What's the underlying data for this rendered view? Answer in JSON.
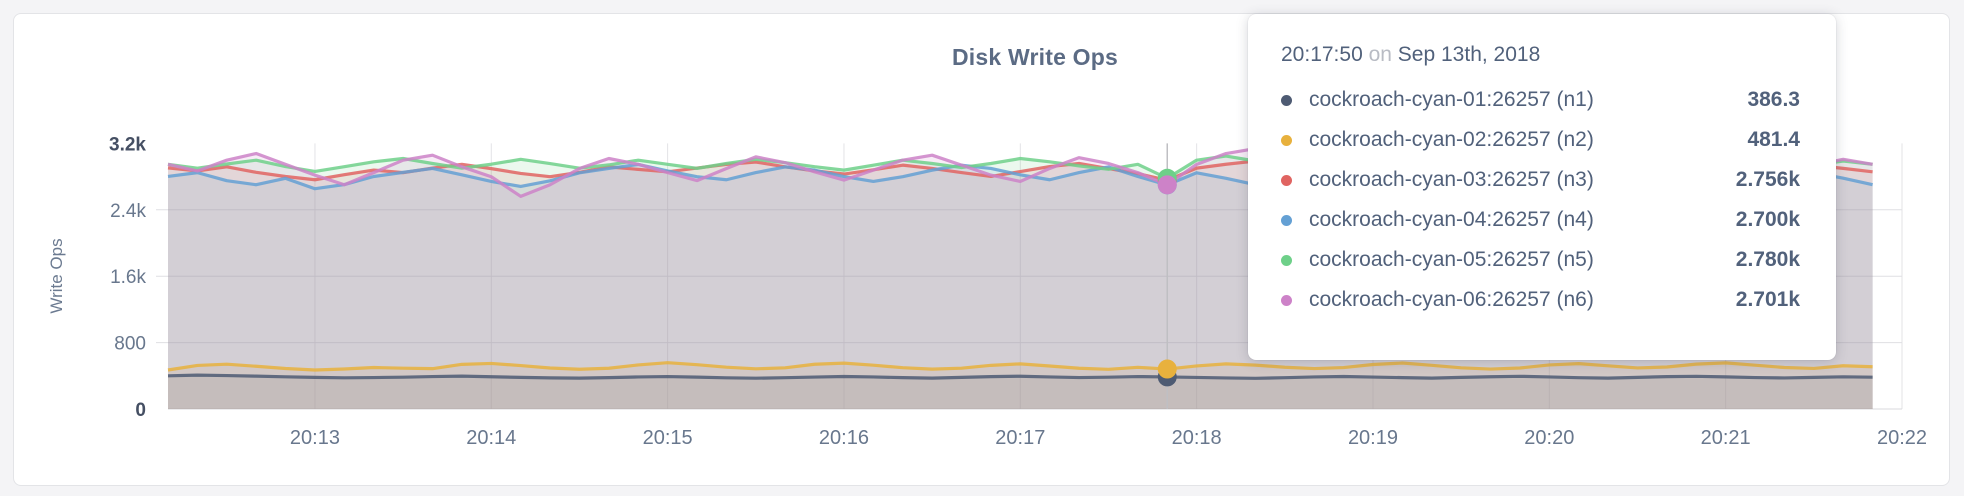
{
  "tooltip": {
    "title": {
      "time": "20:17:50",
      "conjunction": "on",
      "date": "Sep 13th, 2018"
    },
    "rows": [
      {
        "name": "cockroach-cyan-01:26257 (n1)",
        "value": "386.3",
        "color": "#4e5b73"
      },
      {
        "name": "cockroach-cyan-02:26257 (n2)",
        "value": "481.4",
        "color": "#e8b13d"
      },
      {
        "name": "cockroach-cyan-03:26257 (n3)",
        "value": "2.756k",
        "color": "#e06461"
      },
      {
        "name": "cockroach-cyan-04:26257 (n4)",
        "value": "2.700k",
        "color": "#64a0d4"
      },
      {
        "name": "cockroach-cyan-05:26257 (n5)",
        "value": "2.780k",
        "color": "#6ed089"
      },
      {
        "name": "cockroach-cyan-06:26257 (n6)",
        "value": "2.701k",
        "color": "#cd82c8"
      }
    ]
  },
  "chart_data": {
    "type": "area",
    "title": "Disk Write Ops",
    "ylabel": "Write Ops",
    "xlabel": "",
    "ylim": [
      0,
      3200
    ],
    "grid": true,
    "x_start": "20:12:10",
    "x_end": "20:22:00",
    "interval_seconds": 10,
    "domain_seconds": 590,
    "hover": {
      "index": 34,
      "time": "20:17:50",
      "date": "Sep 13th, 2018"
    },
    "y_ticks": [
      {
        "label": "0",
        "value": 0,
        "bold": true
      },
      {
        "label": "800",
        "value": 800,
        "bold": false
      },
      {
        "label": "1.6k",
        "value": 1600,
        "bold": false
      },
      {
        "label": "2.4k",
        "value": 2400,
        "bold": false
      },
      {
        "label": "3.2k",
        "value": 3200,
        "bold": true
      }
    ],
    "x_ticks": [
      {
        "label": "20:13",
        "t": 50
      },
      {
        "label": "20:14",
        "t": 110
      },
      {
        "label": "20:15",
        "t": 170
      },
      {
        "label": "20:16",
        "t": 230
      },
      {
        "label": "20:17",
        "t": 290
      },
      {
        "label": "20:18",
        "t": 350
      },
      {
        "label": "20:19",
        "t": 410
      },
      {
        "label": "20:20",
        "t": 470
      },
      {
        "label": "20:21",
        "t": 530
      },
      {
        "label": "20:22",
        "t": 590
      }
    ],
    "series": [
      {
        "name": "cockroach-cyan-01:26257 (n1)",
        "color": "#4e5b73",
        "hover_value": 386.3,
        "values": [
          400,
          408,
          403,
          396,
          388,
          381,
          376,
          379,
          383,
          391,
          396,
          389,
          381,
          375,
          372,
          378,
          386,
          391,
          384,
          376,
          371,
          377,
          385,
          392,
          386,
          378,
          372,
          381,
          390,
          395,
          386,
          379,
          383,
          391,
          386.3,
          380,
          374,
          370,
          377,
          386,
          392,
          385,
          378,
          372,
          381,
          389,
          394,
          386,
          377,
          372,
          381,
          390,
          394,
          387,
          379,
          374,
          381,
          388,
          383
        ]
      },
      {
        "name": "cockroach-cyan-02:26257 (n2)",
        "color": "#e8b13d",
        "hover_value": 481.4,
        "values": [
          470,
          525,
          540,
          515,
          488,
          470,
          482,
          500,
          492,
          486,
          538,
          549,
          523,
          494,
          479,
          491,
          531,
          558,
          534,
          504,
          484,
          496,
          539,
          553,
          528,
          498,
          480,
          492,
          526,
          544,
          518,
          491,
          478,
          502,
          481.4,
          519,
          544,
          529,
          503,
          487,
          499,
          536,
          554,
          526,
          496,
          481,
          494,
          531,
          547,
          520,
          495,
          506,
          541,
          556,
          528,
          500,
          489,
          521,
          509
        ]
      },
      {
        "name": "cockroach-cyan-03:26257 (n3)",
        "color": "#e06461",
        "hover_value": 2756,
        "values": [
          2905,
          2868,
          2918,
          2852,
          2801,
          2762,
          2823,
          2879,
          2848,
          2902,
          2948,
          2896,
          2838,
          2799,
          2851,
          2917,
          2887,
          2858,
          2903,
          2947,
          2976,
          2918,
          2869,
          2831,
          2882,
          2938,
          2898,
          2849,
          2802,
          2861,
          2921,
          2958,
          2897,
          2836,
          2756,
          2902,
          2949,
          2987,
          2928,
          2868,
          2821,
          2879,
          2936,
          2975,
          2917,
          2859,
          2901,
          2946,
          2899,
          2841,
          2883,
          2929,
          2966,
          2907,
          2848,
          2890,
          2937,
          2899,
          2858
        ]
      },
      {
        "name": "cockroach-cyan-04:26257 (n4)",
        "color": "#64a0d4",
        "hover_value": 2700,
        "values": [
          2802,
          2848,
          2751,
          2702,
          2779,
          2654,
          2704,
          2801,
          2851,
          2898,
          2821,
          2742,
          2681,
          2749,
          2846,
          2898,
          2946,
          2868,
          2799,
          2762,
          2848,
          2917,
          2878,
          2801,
          2742,
          2799,
          2878,
          2937,
          2898,
          2821,
          2762,
          2848,
          2917,
          2801,
          2700,
          2846,
          2779,
          2702,
          2752,
          2849,
          2898,
          2819,
          2761,
          2828,
          2897,
          2858,
          2799,
          2751,
          2818,
          2877,
          2838,
          2779,
          2722,
          2798,
          2868,
          2897,
          2848,
          2781,
          2702
        ]
      },
      {
        "name": "cockroach-cyan-05:26257 (n5)",
        "color": "#6ed089",
        "hover_value": 2780,
        "values": [
          2948,
          2901,
          2952,
          2998,
          2921,
          2862,
          2919,
          2978,
          3018,
          2958,
          2902,
          2949,
          3008,
          2957,
          2901,
          2941,
          2998,
          2948,
          2899,
          2958,
          3008,
          2968,
          2919,
          2878,
          2938,
          2998,
          2958,
          2909,
          2958,
          3018,
          2978,
          2929,
          2888,
          2948,
          2780,
          2998,
          3048,
          2988,
          2938,
          2899,
          2958,
          3008,
          2968,
          2919,
          2978,
          3028,
          2988,
          2938,
          2899,
          2948,
          2998,
          2958,
          2919,
          2968,
          3018,
          2978,
          2938,
          2988,
          2948
        ]
      },
      {
        "name": "cockroach-cyan-06:26257 (n6)",
        "color": "#cd82c8",
        "hover_value": 2701,
        "values": [
          2948,
          2868,
          2998,
          3078,
          2948,
          2818,
          2702,
          2848,
          2998,
          3058,
          2918,
          2798,
          2562,
          2702,
          2898,
          3018,
          2948,
          2848,
          2752,
          2898,
          3038,
          2968,
          2858,
          2758,
          2878,
          2998,
          3058,
          2938,
          2818,
          2742,
          2898,
          3028,
          2958,
          2848,
          2701,
          2948,
          3078,
          3138,
          2978,
          2848,
          2758,
          2898,
          3048,
          2978,
          2868,
          2778,
          2918,
          3058,
          2988,
          2878,
          2788,
          2928,
          3068,
          2998,
          2888,
          2798,
          2938,
          3008,
          2948
        ]
      }
    ],
    "style": {
      "fill_opacity": 0.14,
      "line_opacity": 0.85,
      "grid_v_color": "#e3e3e6",
      "grid_h_color": "#dfdfe3",
      "axis_line_color": "#d9d9dc",
      "guideline_color": "#bfbfc3"
    }
  }
}
